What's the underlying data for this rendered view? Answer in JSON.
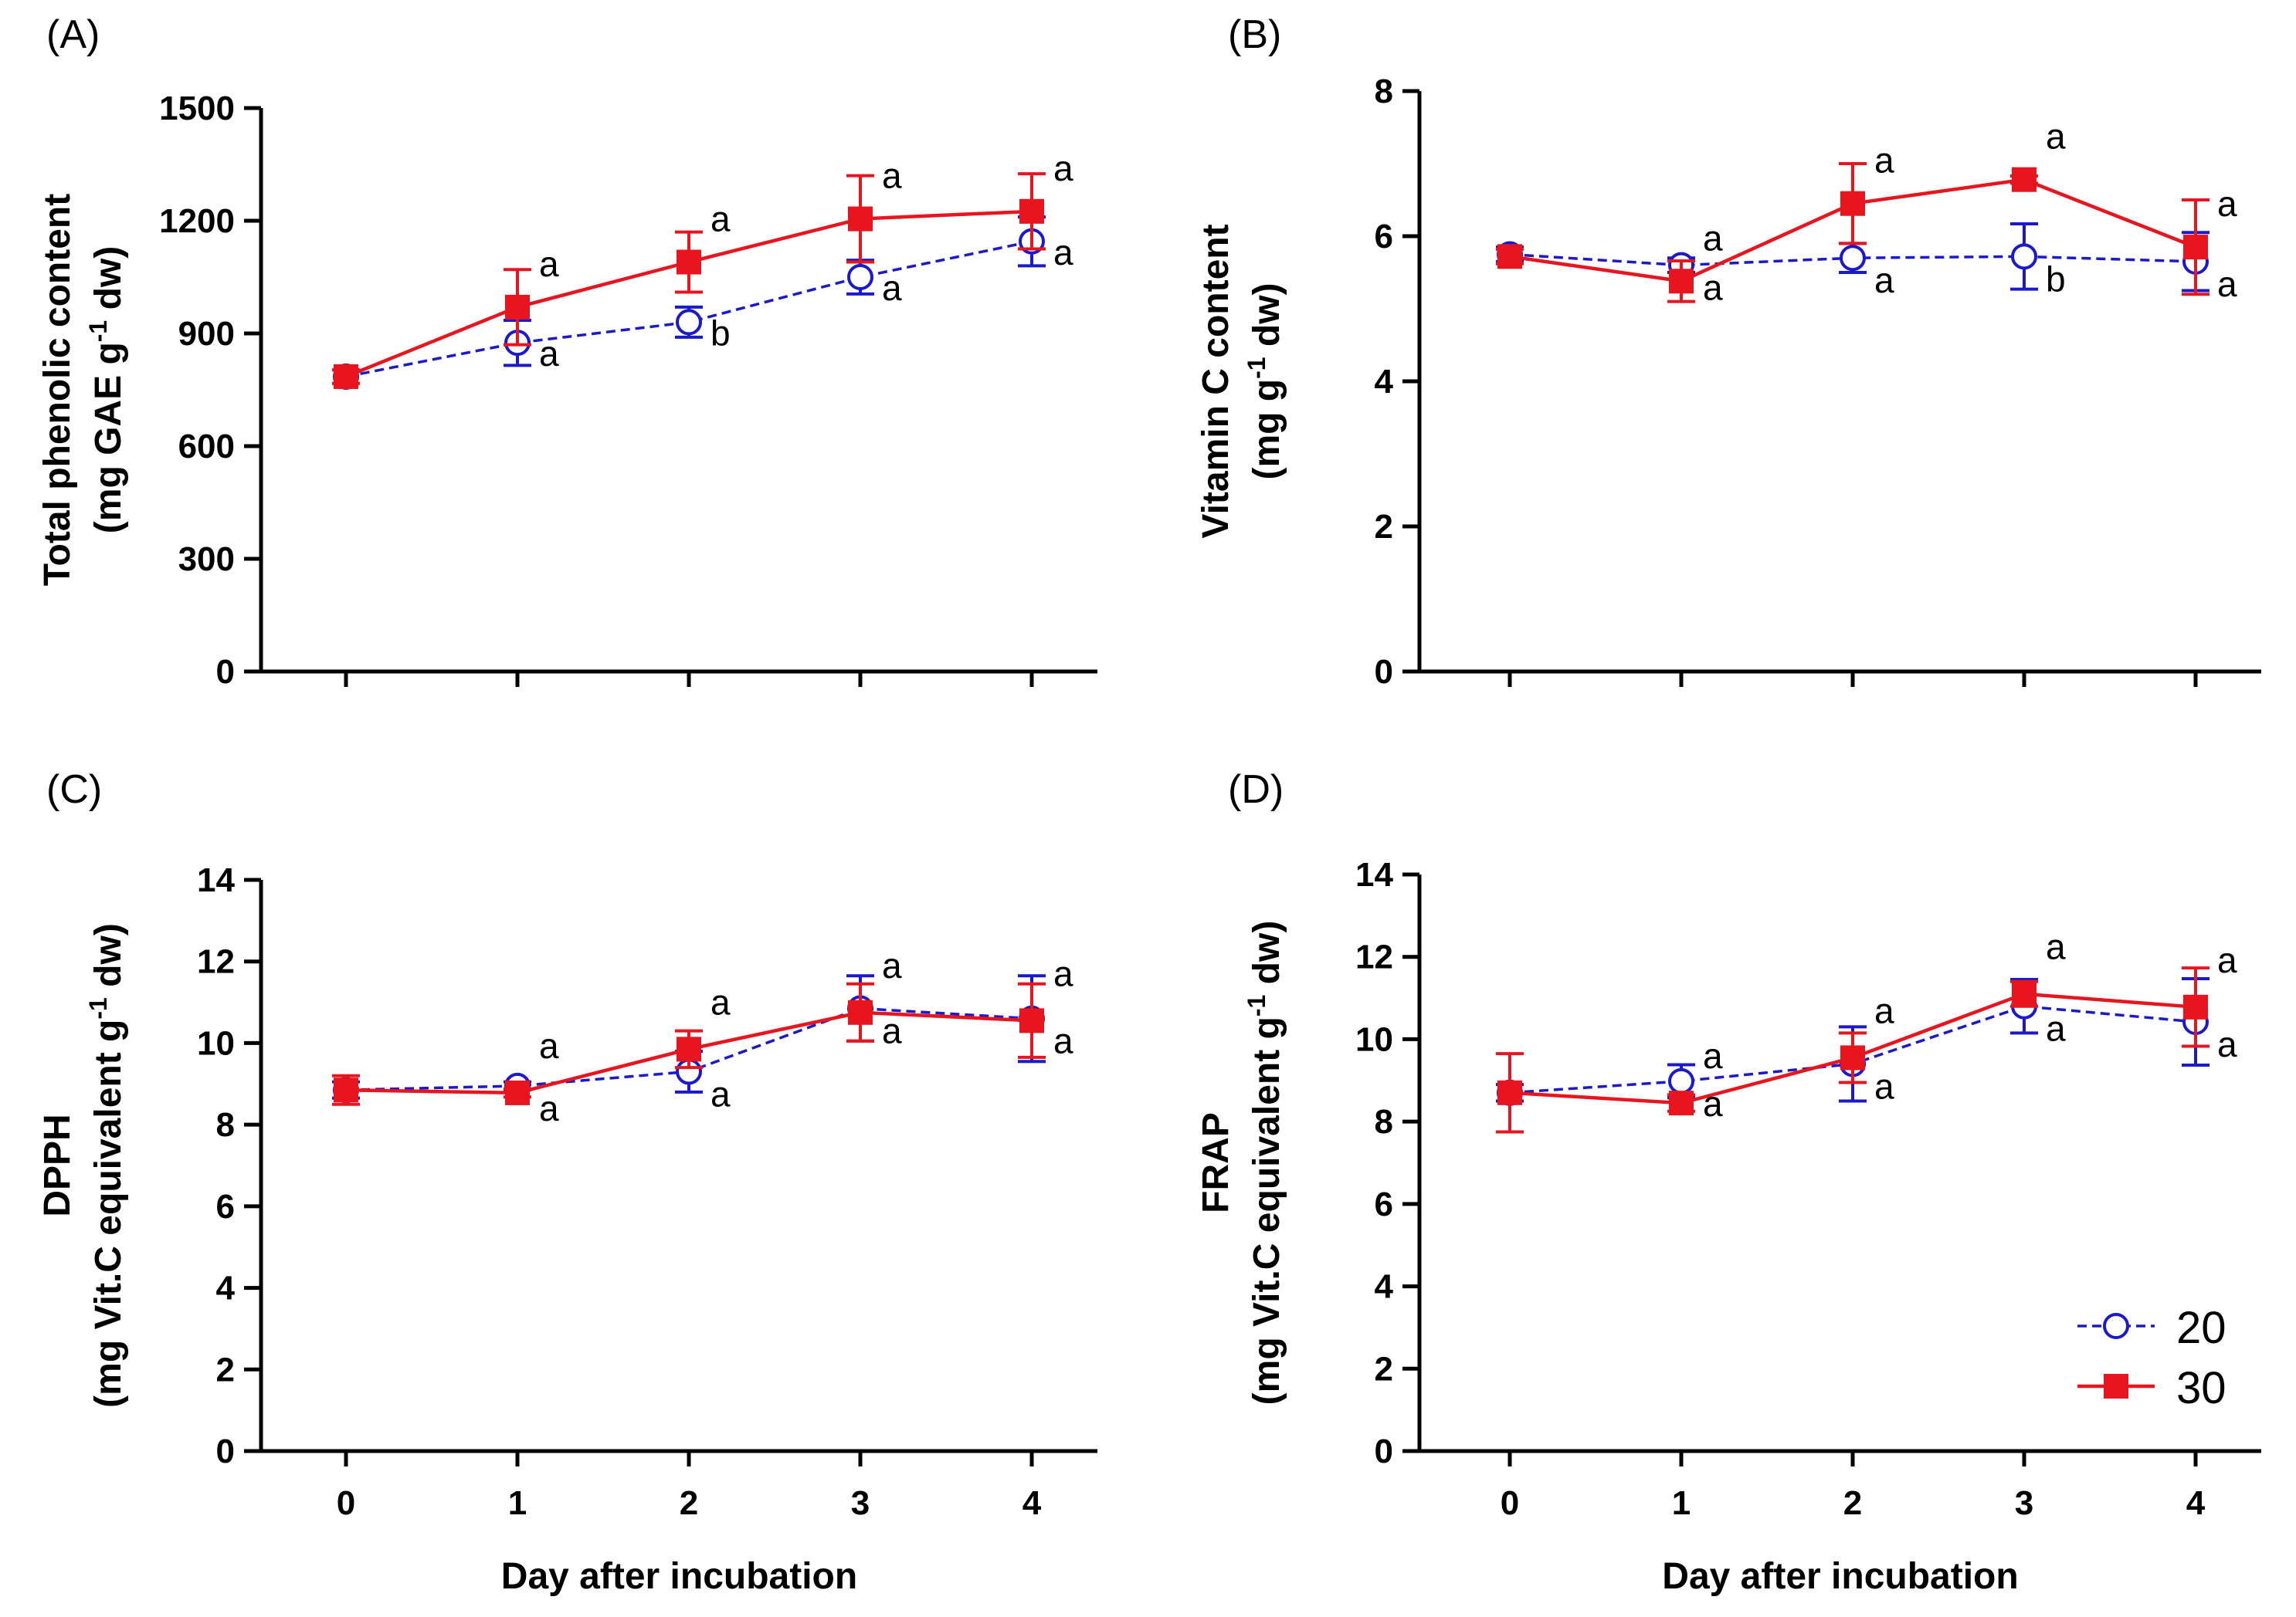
{
  "chart_data": [
    {
      "type": "line",
      "panel_label": "(A)",
      "ylabel_lines": [
        "Total phenolic content",
        "(mg GAE g",
        "-1",
        " dw)"
      ],
      "xlabel": "",
      "x": [
        0,
        1,
        2,
        3,
        4
      ],
      "ylim": [
        0,
        1500
      ],
      "yticks": [
        "0",
        "300",
        "600",
        "900",
        "1200",
        "1500"
      ],
      "ytick_values": [
        0,
        300,
        600,
        900,
        1200,
        1500
      ],
      "xtick_labels": [],
      "series": [
        {
          "name": "20",
          "values": [
            785,
            875,
            930,
            1050,
            1145
          ],
          "errors": [
            18,
            60,
            40,
            45,
            65
          ],
          "letters": [
            "",
            "a",
            "b",
            "a",
            "a"
          ],
          "color": "#1a1acc"
        },
        {
          "name": "30",
          "values": [
            785,
            970,
            1090,
            1205,
            1225
          ],
          "errors": [
            18,
            100,
            80,
            115,
            100
          ],
          "letters": [
            "",
            "a",
            "a",
            "a",
            "a"
          ],
          "color": "#e8141e"
        }
      ]
    },
    {
      "type": "line",
      "panel_label": "(B)",
      "ylabel_lines": [
        "Vitamin C content",
        "(mg g",
        "-1",
        " dw)"
      ],
      "xlabel": "",
      "x": [
        0,
        1,
        2,
        3,
        4
      ],
      "ylim": [
        0,
        8
      ],
      "yticks": [
        "0",
        "2",
        "4",
        "6",
        "8"
      ],
      "ytick_values": [
        0,
        2,
        4,
        6,
        8
      ],
      "xtick_labels": [],
      "series": [
        {
          "name": "20",
          "values": [
            5.75,
            5.6,
            5.7,
            5.72,
            5.65
          ],
          "errors": [
            0.1,
            0.1,
            0.2,
            0.45,
            0.4
          ],
          "letters": [
            "",
            "a",
            "a",
            "b",
            "a"
          ],
          "color": "#1a1acc"
        },
        {
          "name": "30",
          "values": [
            5.72,
            5.38,
            6.45,
            6.78,
            5.85
          ],
          "errors": [
            0.1,
            0.28,
            0.55,
            0.05,
            0.65
          ],
          "letters": [
            "",
            "a",
            "a",
            "a",
            "a"
          ],
          "color": "#e8141e"
        }
      ]
    },
    {
      "type": "line",
      "panel_label": "(C)",
      "ylabel_lines": [
        "DPPH",
        "(mg Vit.C equivalent g",
        "-1",
        " dw)"
      ],
      "xlabel": "Day after incubation",
      "x": [
        0,
        1,
        2,
        3,
        4
      ],
      "ylim": [
        0,
        14
      ],
      "yticks": [
        "0",
        "2",
        "4",
        "6",
        "8",
        "10",
        "12",
        "14"
      ],
      "ytick_values": [
        0,
        2,
        4,
        6,
        8,
        10,
        12,
        14
      ],
      "xtick_labels": [
        "0",
        "1",
        "2",
        "3",
        "4"
      ],
      "series": [
        {
          "name": "20",
          "values": [
            8.85,
            8.95,
            9.3,
            10.85,
            10.6
          ],
          "errors": [
            0.2,
            0.1,
            0.5,
            0.8,
            1.05
          ],
          "letters": [
            "",
            "a",
            "a",
            "a",
            "a"
          ],
          "color": "#1a1acc"
        },
        {
          "name": "30",
          "values": [
            8.85,
            8.78,
            9.85,
            10.75,
            10.55
          ],
          "errors": [
            0.35,
            0.1,
            0.45,
            0.7,
            0.9
          ],
          "letters": [
            "",
            "a",
            "a",
            "a",
            "a"
          ],
          "color": "#e8141e"
        }
      ]
    },
    {
      "type": "line",
      "panel_label": "(D)",
      "ylabel_lines": [
        "FRAP",
        "(mg Vit.C equivalent g",
        "-1",
        " dw)"
      ],
      "xlabel": "Day after incubation",
      "x": [
        0,
        1,
        2,
        3,
        4
      ],
      "ylim": [
        0,
        14
      ],
      "yticks": [
        "0",
        "2",
        "4",
        "6",
        "8",
        "10",
        "12",
        "14"
      ],
      "ytick_values": [
        0,
        2,
        4,
        6,
        8,
        10,
        12,
        14
      ],
      "xtick_labels": [
        "0",
        "1",
        "2",
        "3",
        "4"
      ],
      "series": [
        {
          "name": "20",
          "values": [
            8.7,
            8.98,
            9.4,
            10.8,
            10.42
          ],
          "errors": [
            0.2,
            0.4,
            0.9,
            0.65,
            1.05
          ],
          "letters": [
            "",
            "a",
            "a",
            "a",
            "a"
          ],
          "color": "#1a1acc"
        },
        {
          "name": "30",
          "values": [
            8.7,
            8.45,
            9.55,
            11.1,
            10.78
          ],
          "errors": [
            0.95,
            0.2,
            0.6,
            0.3,
            0.95
          ],
          "letters": [
            "",
            "a",
            "a",
            "a",
            "a"
          ],
          "color": "#e8141e"
        }
      ]
    }
  ],
  "legend": {
    "items": [
      {
        "label": "20",
        "color": "#1a1acc",
        "marker": "open-circle",
        "line": "dashed"
      },
      {
        "label": "30",
        "color": "#e8141e",
        "marker": "filled-square",
        "line": "solid"
      }
    ]
  }
}
